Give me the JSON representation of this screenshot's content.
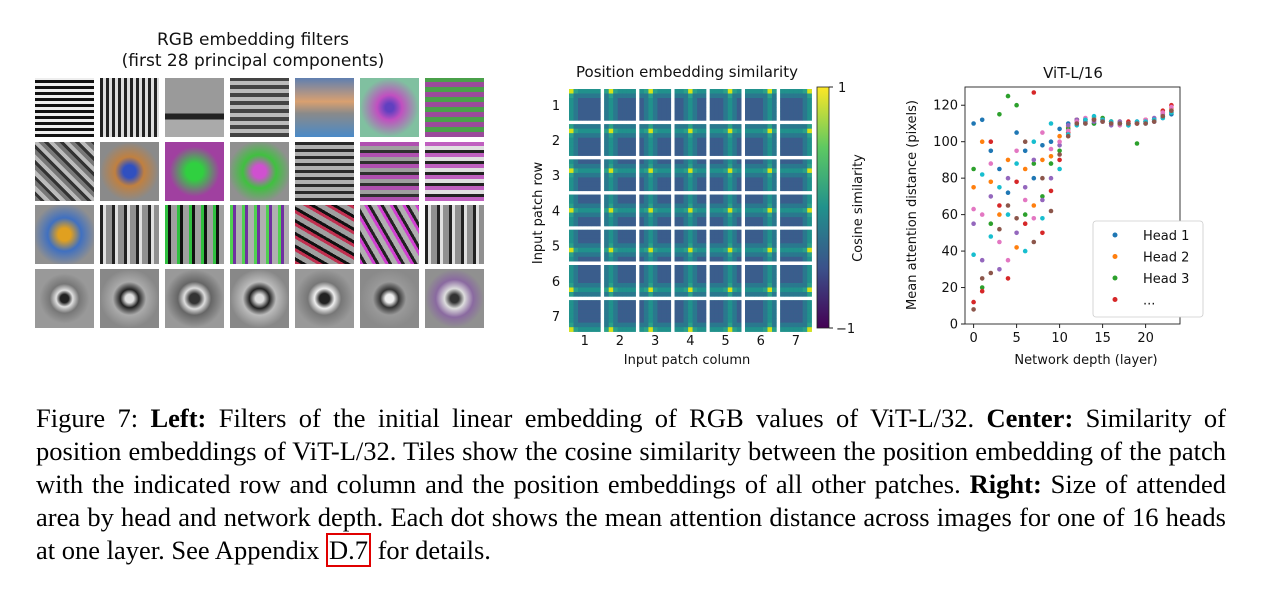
{
  "left": {
    "title_line1": "RGB embedding filters",
    "title_line2": "(first 28 principal components)"
  },
  "center": {
    "title": "Position embedding similarity",
    "ylabel": "Input patch row",
    "xlabel": "Input patch column",
    "colorbar_label": "Cosine similarity",
    "colorbar_max": "1",
    "colorbar_min": "−1",
    "row_labels": [
      "1",
      "2",
      "3",
      "4",
      "5",
      "6",
      "7"
    ],
    "col_labels": [
      "1",
      "2",
      "3",
      "4",
      "5",
      "6",
      "7"
    ]
  },
  "chart_data": {
    "type": "scatter",
    "title": "ViT-L/16",
    "xlabel": "Network depth (layer)",
    "ylabel": "Mean attention distance (pixels)",
    "xlim": [
      -1,
      24
    ],
    "ylim": [
      0,
      130
    ],
    "xticks": [
      0,
      5,
      10,
      15,
      20
    ],
    "yticks": [
      0,
      20,
      40,
      60,
      80,
      100,
      120
    ],
    "legend_position": "lower-right",
    "legend": [
      "Head 1",
      "Head 2",
      "Head 3",
      "..."
    ],
    "series": [
      {
        "name": "Head 1",
        "color": "#1f77b4",
        "points": [
          [
            0,
            110
          ],
          [
            1,
            112
          ],
          [
            2,
            95
          ],
          [
            3,
            85
          ],
          [
            4,
            72
          ],
          [
            5,
            105
          ],
          [
            6,
            95
          ],
          [
            7,
            80
          ],
          [
            8,
            98
          ],
          [
            9,
            100
          ],
          [
            10,
            107
          ],
          [
            11,
            110
          ],
          [
            12,
            111
          ],
          [
            13,
            110
          ],
          [
            14,
            110
          ],
          [
            15,
            111
          ],
          [
            16,
            110
          ],
          [
            17,
            110
          ],
          [
            18,
            109
          ],
          [
            19,
            110
          ],
          [
            20,
            110
          ],
          [
            21,
            111
          ],
          [
            22,
            113
          ],
          [
            23,
            115
          ]
        ]
      },
      {
        "name": "Head 2",
        "color": "#ff7f0e",
        "points": [
          [
            0,
            75
          ],
          [
            1,
            100
          ],
          [
            2,
            78
          ],
          [
            3,
            60
          ],
          [
            4,
            90
          ],
          [
            5,
            42
          ],
          [
            6,
            85
          ],
          [
            7,
            65
          ],
          [
            8,
            90
          ],
          [
            9,
            92
          ],
          [
            10,
            103
          ],
          [
            11,
            108
          ],
          [
            12,
            110
          ],
          [
            13,
            112
          ],
          [
            14,
            113
          ],
          [
            15,
            112
          ],
          [
            16,
            111
          ],
          [
            17,
            111
          ],
          [
            18,
            110
          ],
          [
            19,
            110
          ],
          [
            20,
            111
          ],
          [
            21,
            112
          ],
          [
            22,
            116
          ],
          [
            23,
            118
          ]
        ]
      },
      {
        "name": "Head 3",
        "color": "#2ca02c",
        "points": [
          [
            0,
            85
          ],
          [
            1,
            20
          ],
          [
            2,
            55
          ],
          [
            3,
            115
          ],
          [
            4,
            125
          ],
          [
            5,
            120
          ],
          [
            6,
            60
          ],
          [
            7,
            88
          ],
          [
            8,
            70
          ],
          [
            9,
            88
          ],
          [
            10,
            95
          ],
          [
            11,
            107
          ],
          [
            12,
            112
          ],
          [
            13,
            111
          ],
          [
            14,
            110
          ],
          [
            15,
            113
          ],
          [
            16,
            111
          ],
          [
            17,
            110
          ],
          [
            18,
            110
          ],
          [
            19,
            99
          ],
          [
            20,
            111
          ],
          [
            21,
            112
          ],
          [
            22,
            114
          ],
          [
            23,
            116
          ]
        ]
      },
      {
        "name": "...",
        "color": "#d62728",
        "points": [
          [
            0,
            12
          ],
          [
            1,
            18
          ],
          [
            2,
            100
          ],
          [
            3,
            65
          ],
          [
            4,
            25
          ],
          [
            5,
            78
          ],
          [
            6,
            55
          ],
          [
            7,
            127
          ],
          [
            8,
            50
          ],
          [
            9,
            73
          ],
          [
            10,
            90
          ],
          [
            11,
            105
          ],
          [
            12,
            112
          ],
          [
            13,
            112
          ],
          [
            14,
            112
          ],
          [
            15,
            112
          ],
          [
            16,
            110
          ],
          [
            17,
            110
          ],
          [
            18,
            111
          ],
          [
            19,
            110
          ],
          [
            20,
            112
          ],
          [
            21,
            112
          ],
          [
            22,
            117
          ],
          [
            23,
            120
          ]
        ]
      },
      {
        "name": "",
        "color": "#9467bd",
        "points": [
          [
            0,
            55
          ],
          [
            1,
            35
          ],
          [
            2,
            70
          ],
          [
            3,
            30
          ],
          [
            4,
            80
          ],
          [
            5,
            50
          ],
          [
            6,
            75
          ],
          [
            7,
            90
          ],
          [
            8,
            68
          ],
          [
            9,
            80
          ],
          [
            10,
            98
          ],
          [
            11,
            109
          ],
          [
            12,
            112
          ],
          [
            13,
            111
          ],
          [
            14,
            111
          ],
          [
            15,
            112
          ],
          [
            16,
            109
          ],
          [
            17,
            111
          ],
          [
            18,
            110
          ],
          [
            19,
            111
          ],
          [
            20,
            111
          ],
          [
            21,
            113
          ],
          [
            22,
            115
          ],
          [
            23,
            117
          ]
        ]
      },
      {
        "name": "",
        "color": "#e377c2",
        "points": [
          [
            0,
            63
          ],
          [
            1,
            60
          ],
          [
            2,
            88
          ],
          [
            3,
            45
          ],
          [
            4,
            35
          ],
          [
            5,
            95
          ],
          [
            6,
            68
          ],
          [
            7,
            58
          ],
          [
            8,
            105
          ],
          [
            9,
            96
          ],
          [
            10,
            100
          ],
          [
            11,
            106
          ],
          [
            12,
            111
          ],
          [
            13,
            113
          ],
          [
            14,
            112
          ],
          [
            15,
            111
          ],
          [
            16,
            110
          ],
          [
            17,
            109
          ],
          [
            18,
            110
          ],
          [
            19,
            110
          ],
          [
            20,
            112
          ],
          [
            21,
            111
          ],
          [
            22,
            116
          ],
          [
            23,
            119
          ]
        ]
      },
      {
        "name": "",
        "color": "#17becf",
        "points": [
          [
            0,
            38
          ],
          [
            1,
            82
          ],
          [
            2,
            48
          ],
          [
            3,
            75
          ],
          [
            4,
            60
          ],
          [
            5,
            88
          ],
          [
            6,
            40
          ],
          [
            7,
            100
          ],
          [
            8,
            58
          ],
          [
            9,
            110
          ],
          [
            10,
            85
          ],
          [
            11,
            104
          ],
          [
            12,
            109
          ],
          [
            13,
            112
          ],
          [
            14,
            114
          ],
          [
            15,
            112
          ],
          [
            16,
            111
          ],
          [
            17,
            110
          ],
          [
            18,
            109
          ],
          [
            19,
            111
          ],
          [
            20,
            111
          ],
          [
            21,
            112
          ],
          [
            22,
            113
          ],
          [
            23,
            116
          ]
        ]
      },
      {
        "name": "",
        "color": "#8c564b",
        "points": [
          [
            0,
            8
          ],
          [
            1,
            25
          ],
          [
            2,
            28
          ],
          [
            3,
            52
          ],
          [
            4,
            65
          ],
          [
            5,
            58
          ],
          [
            6,
            100
          ],
          [
            7,
            45
          ],
          [
            8,
            80
          ],
          [
            9,
            62
          ],
          [
            10,
            93
          ],
          [
            11,
            103
          ],
          [
            12,
            110
          ],
          [
            13,
            110
          ],
          [
            14,
            112
          ],
          [
            15,
            111
          ],
          [
            16,
            110
          ],
          [
            17,
            110
          ],
          [
            18,
            110
          ],
          [
            19,
            110
          ],
          [
            20,
            110
          ],
          [
            21,
            111
          ],
          [
            22,
            114
          ],
          [
            23,
            117
          ]
        ]
      }
    ]
  },
  "caption": {
    "p1": "Figure 7:  ",
    "b1": "Left:",
    "p2": " Filters of the initial linear embedding of RGB values of ViT-L/32. ",
    "b2": "Center:",
    "p3": " Similarity of position embeddings of ViT-L/32. Tiles show the cosine similarity between the position embedding of the patch with the indicated row and column and the position embeddings of all other patches. ",
    "b3": "Right:",
    "p4": " Size of attended area by head and network depth. Each dot shows the mean attention distance across images for one of 16 heads at one layer. See Appendix ",
    "ref": "D.7",
    "p5": " for details."
  }
}
